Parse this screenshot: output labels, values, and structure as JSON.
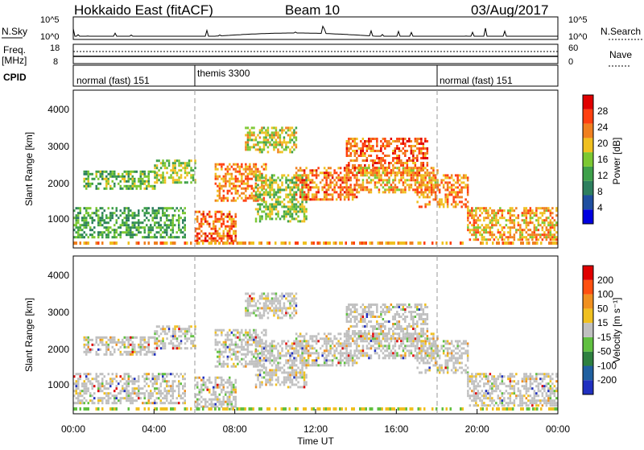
{
  "header": {
    "station": "Hokkaido East (fitACF)",
    "beam": "Beam 10",
    "date": "03/Aug/2017"
  },
  "top_panels": {
    "nsky_label": "N.Sky",
    "nsky_ticks": [
      "10^5",
      "10^0"
    ],
    "nsearch_label": "N.Search",
    "nsearch_ticks": [
      "10^5",
      "10^0"
    ],
    "freq_label": "Freq.",
    "freq_unit": "[MHz]",
    "freq_ticks": [
      "18",
      "8"
    ],
    "nave_label": "Nave",
    "nave_ticks": [
      "60",
      "0"
    ],
    "cpid_label": "CPID",
    "cpid_segments": [
      {
        "label": "normal (fast) 151",
        "start_h": 0,
        "end_h": 6
      },
      {
        "label": "themis 3300",
        "start_h": 6,
        "end_h": 18
      },
      {
        "label": "normal (fast) 151",
        "start_h": 18,
        "end_h": 24
      }
    ]
  },
  "x_axis": {
    "label": "Time UT",
    "ticks": [
      "00:00",
      "04:00",
      "08:00",
      "12:00",
      "16:00",
      "20:00",
      "00:00"
    ]
  },
  "power_panel": {
    "ylabel": "Slant Range [km]",
    "yticks": [
      "4000",
      "3000",
      "2000",
      "1000"
    ],
    "colorbar_label": "Power [dB]",
    "colorbar_ticks": [
      "28",
      "24",
      "20",
      "16",
      "12",
      "8",
      "4"
    ],
    "colors": [
      "#0000e0",
      "#1f4fa0",
      "#2e7f5f",
      "#3ea04a",
      "#7cc832",
      "#f0c020",
      "#f08020",
      "#ff4010",
      "#e00000"
    ]
  },
  "velocity_panel": {
    "ylabel": "Slant Range [km]",
    "yticks": [
      "4000",
      "3000",
      "2000",
      "1000"
    ],
    "colorbar_label": "Velocity [m s⁻¹]",
    "colorbar_ticks": [
      "200",
      "100",
      "50",
      "15",
      "-15",
      "-50",
      "-100",
      "-200"
    ],
    "colors": [
      "#2030c0",
      "#2060a0",
      "#2e8040",
      "#60c040",
      "#c0c0c0",
      "#f0c020",
      "#f09020",
      "#ff5010",
      "#e00000"
    ]
  },
  "chart_data": {
    "type": "heatmap",
    "title": "Hokkaido East (fitACF) Beam 10 03/Aug/2017",
    "xlabel": "Time UT",
    "ylabel": "Slant Range [km]",
    "xlim_hours": [
      0,
      24
    ],
    "ylim_km": [
      180,
      4500
    ],
    "grid": false,
    "mode_change_hours": [
      6,
      18
    ],
    "echo_regions": [
      {
        "t0": 0.0,
        "t1": 5.5,
        "r0": 500,
        "r1": 1300,
        "power_db": 14,
        "vel": 0
      },
      {
        "t0": 0.5,
        "t1": 4.0,
        "r0": 1800,
        "r1": 2300,
        "power_db": 16,
        "vel": 0
      },
      {
        "t0": 4.0,
        "t1": 6.0,
        "r0": 2000,
        "r1": 2600,
        "power_db": 18,
        "vel": 0
      },
      {
        "t0": 6.0,
        "t1": 8.0,
        "r0": 300,
        "r1": 1200,
        "power_db": 28,
        "vel": 0
      },
      {
        "t0": 7.0,
        "t1": 9.5,
        "r0": 1500,
        "r1": 2500,
        "power_db": 26,
        "vel": 0
      },
      {
        "t0": 8.5,
        "t1": 11.0,
        "r0": 2800,
        "r1": 3500,
        "power_db": 20,
        "vel": 0
      },
      {
        "t0": 9.0,
        "t1": 11.5,
        "r0": 900,
        "r1": 2200,
        "power_db": 18,
        "vel": 0
      },
      {
        "t0": 11.0,
        "t1": 14.0,
        "r0": 1500,
        "r1": 2400,
        "power_db": 27,
        "vel": 0
      },
      {
        "t0": 13.5,
        "t1": 17.5,
        "r0": 2200,
        "r1": 3200,
        "power_db": 28,
        "vel": 0
      },
      {
        "t0": 14.0,
        "t1": 18.0,
        "r0": 1700,
        "r1": 2400,
        "power_db": 24,
        "vel": 0
      },
      {
        "t0": 17.0,
        "t1": 19.5,
        "r0": 1300,
        "r1": 2200,
        "power_db": 26,
        "vel": 0
      },
      {
        "t0": 19.5,
        "t1": 24.0,
        "r0": 400,
        "r1": 1300,
        "power_db": 24,
        "vel": 0
      }
    ]
  }
}
